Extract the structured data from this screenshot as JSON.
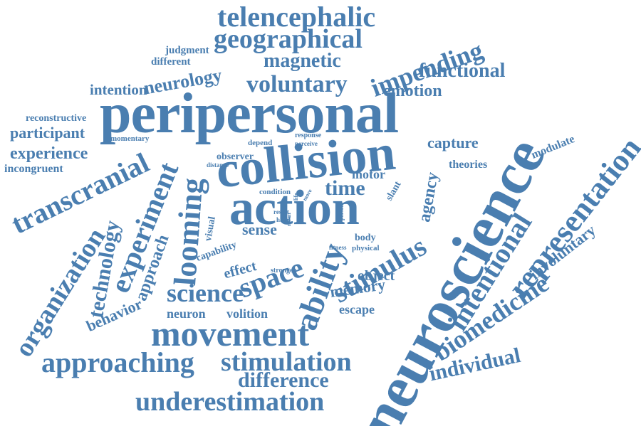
{
  "word_cloud": {
    "color": "#4a7eb0",
    "words": [
      "telencephalic",
      "geographical",
      "judgment",
      "different",
      "magnetic",
      "impending",
      "neurology",
      "functional",
      "voluntary",
      "emotion",
      "intention",
      "peripersonal",
      "reconstructive",
      "participant",
      "momentary",
      "depend",
      "response",
      "perceive",
      "capture",
      "experience",
      "incongruent",
      "transcranial",
      "collision",
      "observer",
      "distance",
      "modulate",
      "theories",
      "neuroscience",
      "representation",
      "condition",
      "time",
      "motor",
      "agency",
      "slant",
      "ability",
      "action",
      "looming",
      "experiment",
      "organization",
      "technology",
      "approach",
      "visual",
      "capability",
      "sense",
      "body",
      "fitness",
      "physical",
      "effect",
      "space",
      "stimulus",
      "stronger",
      "object",
      "result",
      "hand",
      "mean",
      "life",
      "more",
      "person",
      "involuntary",
      "intentional",
      "memory",
      "science",
      "behavior",
      "escape",
      "neuron",
      "volition",
      "biomedicine",
      "individual",
      "movement",
      "approaching",
      "stimulation",
      "difference",
      "underestimation"
    ]
  }
}
